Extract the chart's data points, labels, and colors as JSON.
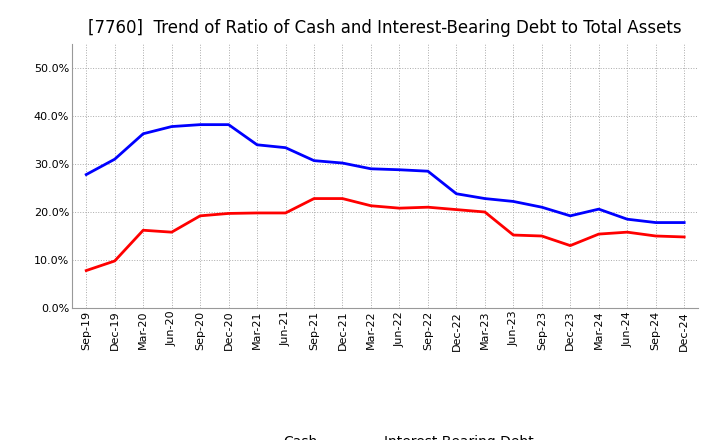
{
  "title": "[7760]  Trend of Ratio of Cash and Interest-Bearing Debt to Total Assets",
  "x_labels": [
    "Sep-19",
    "Dec-19",
    "Mar-20",
    "Jun-20",
    "Sep-20",
    "Dec-20",
    "Mar-21",
    "Jun-21",
    "Sep-21",
    "Dec-21",
    "Mar-22",
    "Jun-22",
    "Sep-22",
    "Dec-22",
    "Mar-23",
    "Jun-23",
    "Sep-23",
    "Dec-23",
    "Mar-24",
    "Jun-24",
    "Sep-24",
    "Dec-24"
  ],
  "cash": [
    0.078,
    0.098,
    0.162,
    0.158,
    0.192,
    0.197,
    0.198,
    0.198,
    0.228,
    0.228,
    0.213,
    0.208,
    0.21,
    0.205,
    0.2,
    0.152,
    0.15,
    0.13,
    0.154,
    0.158,
    0.15,
    0.148
  ],
  "ibd": [
    0.278,
    0.31,
    0.363,
    0.378,
    0.382,
    0.382,
    0.34,
    0.334,
    0.307,
    0.302,
    0.29,
    0.288,
    0.285,
    0.238,
    0.228,
    0.222,
    0.21,
    0.192,
    0.206,
    0.185,
    0.178,
    0.178
  ],
  "cash_color": "#ff0000",
  "ibd_color": "#0000ff",
  "background_color": "#ffffff",
  "grid_color": "#aaaaaa",
  "ylim": [
    0.0,
    0.55
  ],
  "yticks": [
    0.0,
    0.1,
    0.2,
    0.3,
    0.4,
    0.5
  ],
  "legend_cash": "Cash",
  "legend_ibd": "Interest-Bearing Debt",
  "title_fontsize": 12,
  "axis_fontsize": 8,
  "legend_fontsize": 10,
  "line_width": 2.0
}
